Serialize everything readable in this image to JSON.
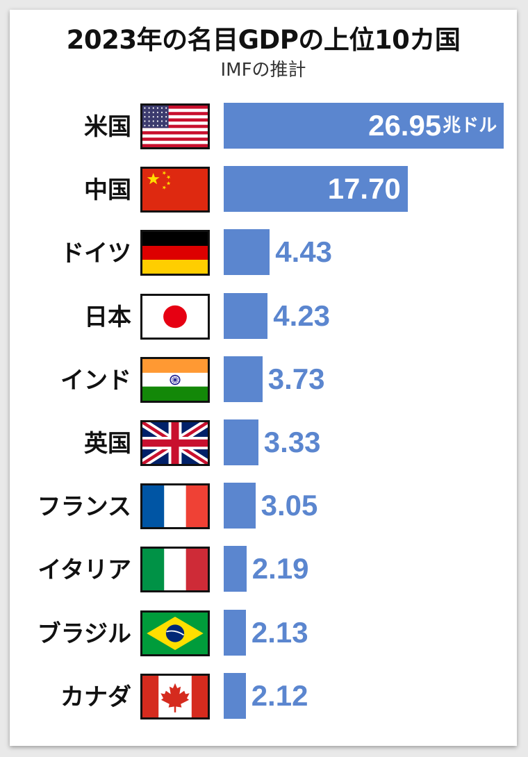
{
  "title": "2023年の名目GDPの上位10カ国",
  "subtitle": "IMFの推計",
  "unit": "兆ドル",
  "chart_data": {
    "type": "bar",
    "orientation": "horizontal",
    "title": "2023年の名目GDPの上位10カ国",
    "subtitle": "IMFの推計",
    "unit": "兆ドル",
    "categories": [
      "米国",
      "中国",
      "ドイツ",
      "日本",
      "インド",
      "英国",
      "フランス",
      "イタリア",
      "ブラジル",
      "カナダ"
    ],
    "values": [
      26.95,
      17.7,
      4.43,
      4.23,
      3.73,
      3.33,
      3.05,
      2.19,
      2.13,
      2.12
    ],
    "labels": [
      "26.95",
      "17.70",
      "4.43",
      "4.23",
      "3.73",
      "3.33",
      "3.05",
      "2.19",
      "2.13",
      "2.12"
    ],
    "flags": [
      "us-flag-icon",
      "china-flag-icon",
      "germany-flag-icon",
      "japan-flag-icon",
      "india-flag-icon",
      "uk-flag-icon",
      "france-flag-icon",
      "italy-flag-icon",
      "brazil-flag-icon",
      "canada-flag-icon"
    ],
    "bar_color": "#5b86cf",
    "xlim": [
      0,
      27
    ],
    "grid": false,
    "legend": "none"
  }
}
